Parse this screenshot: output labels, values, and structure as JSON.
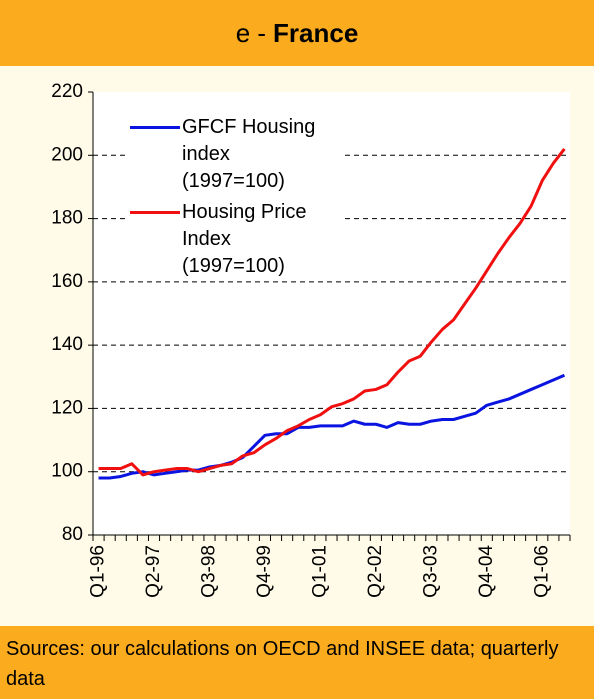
{
  "chart_data": {
    "type": "line",
    "title": {
      "prefix": "e -",
      "main": "France"
    },
    "source": "Sources: our calculations on OECD and INSEE data; quarterly data",
    "categories": [
      "Q1-96",
      null,
      null,
      null,
      null,
      "Q2-97",
      null,
      null,
      null,
      null,
      "Q3-98",
      null,
      null,
      null,
      null,
      "Q4-99",
      null,
      null,
      null,
      null,
      "Q1-01",
      null,
      null,
      null,
      null,
      "Q2-02",
      null,
      null,
      null,
      null,
      "Q3-03",
      null,
      null,
      null,
      null,
      "Q4-04",
      null,
      null,
      null,
      null,
      "Q1-06",
      null,
      null
    ],
    "series": [
      {
        "name": "GFCF Housing index (1997=100)",
        "color": "#0a14e0",
        "values": [
          98,
          98,
          98.5,
          99.5,
          100,
          99,
          99.5,
          100,
          100.5,
          100.5,
          101.5,
          102,
          103,
          104.5,
          108,
          111.5,
          112,
          112,
          114,
          114,
          114.5,
          114.5,
          114.5,
          116,
          115,
          115,
          114,
          115.5,
          115,
          115,
          116,
          116.5,
          116.5,
          117.5,
          118.5,
          121,
          122,
          123,
          124.5,
          126,
          127.5,
          129,
          130.5
        ]
      },
      {
        "name": "Housing Price Index (1997=100)",
        "color": "#f01010",
        "values": [
          101,
          101,
          101,
          102.5,
          99,
          100,
          100.5,
          101,
          101,
          100,
          101,
          102,
          102.5,
          105,
          106,
          108.5,
          110.5,
          113,
          114.5,
          116.5,
          118,
          120.5,
          121.5,
          123,
          125.5,
          126,
          127.5,
          131.5,
          135,
          136.5,
          141,
          145,
          148,
          153,
          158,
          163.5,
          169,
          174,
          178.5,
          184,
          192,
          197.5,
          202
        ]
      }
    ],
    "ylim": [
      80,
      220
    ],
    "yticks": [
      80,
      100,
      120,
      140,
      160,
      180,
      200,
      220
    ],
    "grid": true
  }
}
